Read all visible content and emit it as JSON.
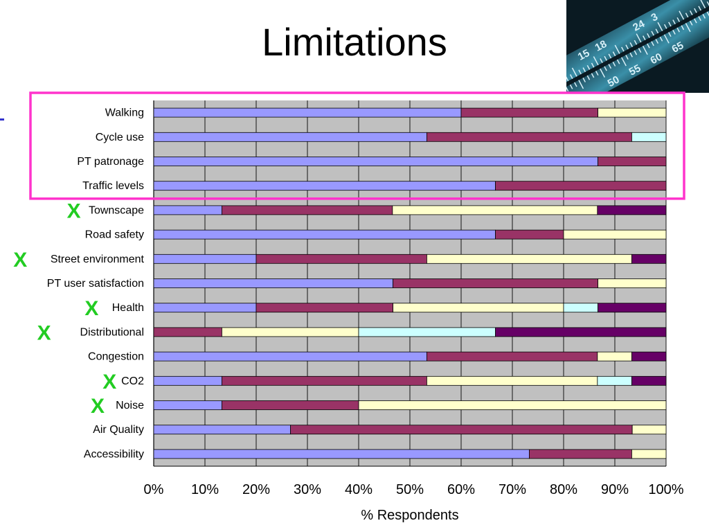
{
  "slide": {
    "title": "Limitations"
  },
  "photo": {
    "icon": "ruler-photo-icon",
    "visible_numbers": [
      "15",
      "18",
      "24",
      "3",
      "50",
      "55",
      "60",
      "65"
    ]
  },
  "colors": {
    "segment_1": "#9999ff",
    "segment_2": "#993366",
    "segment_3": "#ffffcc",
    "segment_4": "#ccffff",
    "segment_5": "#660066",
    "plot_background": "#c0c0c0",
    "highlight_box": "#ff33cc",
    "x_marker": "#22cc22"
  },
  "chart_data": {
    "type": "bar",
    "orientation": "horizontal",
    "stacked": "percent",
    "title": "",
    "xlabel": "% Respondents",
    "ylabel": "",
    "xlim": [
      0,
      100
    ],
    "x_ticks": [
      "0%",
      "10%",
      "20%",
      "30%",
      "40%",
      "50%",
      "60%",
      "70%",
      "80%",
      "90%",
      "100%"
    ],
    "grid": true,
    "legend": "none",
    "categories": [
      "Walking",
      "Cycle use",
      "PT patronage",
      "Traffic levels",
      "Townscape",
      "Road safety",
      "Street environment",
      "PT user satisfaction",
      "Health",
      "Distributional",
      "Congestion",
      "CO2",
      "Noise",
      "Air Quality",
      "Accessibility"
    ],
    "segments": [
      [
        60,
        26.7,
        13.3,
        0,
        0
      ],
      [
        53.3,
        40,
        0,
        6.7,
        0
      ],
      [
        86.7,
        13.3,
        0,
        0,
        0
      ],
      [
        66.7,
        33.3,
        0,
        0,
        0
      ],
      [
        13.3,
        33.3,
        40,
        0,
        13.4
      ],
      [
        66.7,
        13.3,
        20,
        0,
        0
      ],
      [
        20,
        33.3,
        40,
        0,
        6.7
      ],
      [
        46.7,
        40,
        13.3,
        0,
        0
      ],
      [
        20,
        26.7,
        33.3,
        6.7,
        13.3
      ],
      [
        0,
        13.3,
        26.7,
        26.7,
        33.3
      ],
      [
        53.3,
        33.3,
        6.7,
        0,
        6.7
      ],
      [
        13.3,
        40,
        33.3,
        6.7,
        6.7
      ],
      [
        13.3,
        26.7,
        60,
        0,
        0
      ],
      [
        26.7,
        66.7,
        6.6,
        0,
        0
      ],
      [
        73.3,
        20,
        6.7,
        0,
        0
      ]
    ],
    "highlighted_categories": [
      "Walking",
      "Cycle use",
      "PT patronage",
      "Traffic levels"
    ],
    "x_marked_categories": [
      "Townscape",
      "Street environment",
      "Health",
      "Distributional",
      "CO2",
      "Noise"
    ],
    "x_marker_text": "X"
  }
}
